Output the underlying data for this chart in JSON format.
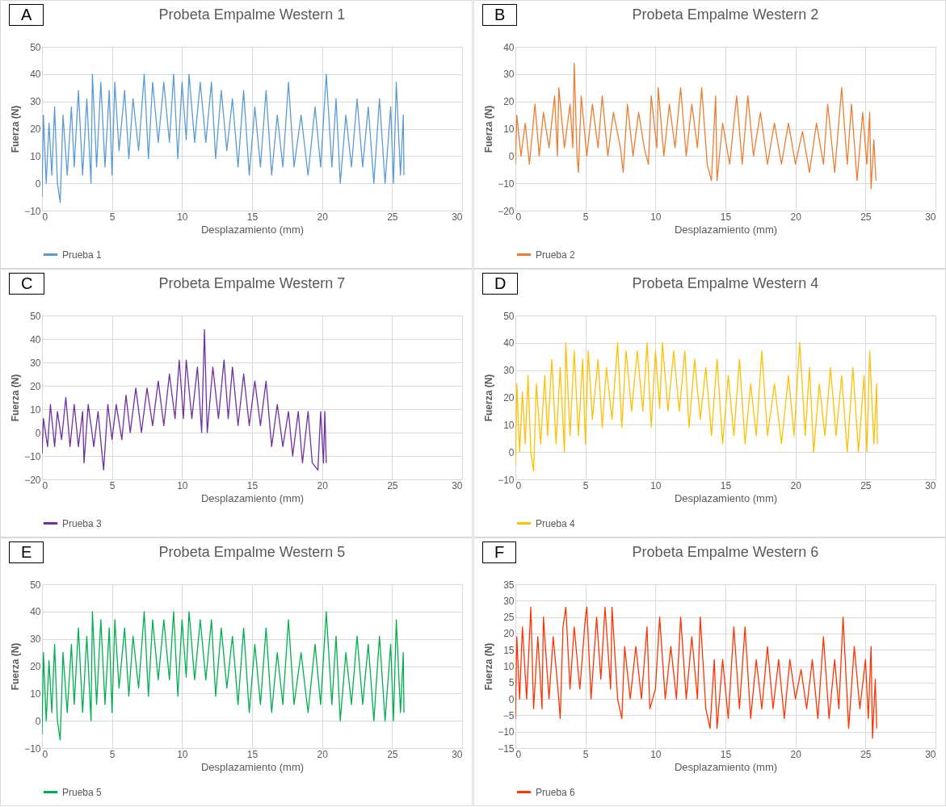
{
  "chart_data": [
    {
      "type": "line",
      "title": "Probeta Empalme Western 1",
      "xlabel": "Desplazamiento (mm)",
      "ylabel": "Fuerza (N)",
      "annotations": [
        "A"
      ],
      "xlim": [
        0,
        30
      ],
      "xticks": [
        0,
        5,
        10,
        15,
        20,
        25,
        30
      ],
      "ylim": [
        -10,
        50
      ],
      "yticks": [
        -10,
        0,
        10,
        20,
        30,
        40,
        50
      ],
      "grid": true,
      "legend": "bottom",
      "series": [
        {
          "name": "Prueba 1",
          "color": "#5b9bd5",
          "x": [
            0,
            0.1,
            0.3,
            0.5,
            0.7,
            0.9,
            1.1,
            1.3,
            1.5,
            1.8,
            2.1,
            2.3,
            2.6,
            2.9,
            3.2,
            3.5,
            3.6,
            3.9,
            4.2,
            4.5,
            4.8,
            5.0,
            5.2,
            5.5,
            5.9,
            6.2,
            6.5,
            6.9,
            7.3,
            7.6,
            7.9,
            8.3,
            8.7,
            9.1,
            9.4,
            9.7,
            10.0,
            10.3,
            10.5,
            10.9,
            11.3,
            11.7,
            12.1,
            12.4,
            12.8,
            13.2,
            13.6,
            14.0,
            14.4,
            14.8,
            15.2,
            15.6,
            16.0,
            16.4,
            16.8,
            17.2,
            17.6,
            18.0,
            18.5,
            19.0,
            19.5,
            19.9,
            20.3,
            20.7,
            21.0,
            21.3,
            21.7,
            22.1,
            22.5,
            22.9,
            23.3,
            23.7,
            24.1,
            24.5,
            24.9,
            25.1,
            25.3,
            25.6,
            25.8,
            25.85
          ],
          "values": [
            -5,
            25,
            0,
            22,
            3,
            28,
            0,
            -7,
            25,
            3,
            28,
            6,
            34,
            3,
            31,
            0,
            40,
            6,
            37,
            6,
            34,
            3,
            37,
            12,
            34,
            9,
            31,
            12,
            40,
            9,
            37,
            15,
            37,
            15,
            40,
            9,
            37,
            16,
            40,
            15,
            37,
            15,
            37,
            9,
            34,
            12,
            31,
            6,
            34,
            3,
            28,
            6,
            34,
            3,
            25,
            6,
            37,
            6,
            25,
            3,
            28,
            6,
            40,
            6,
            31,
            0,
            25,
            6,
            31,
            6,
            28,
            0,
            31,
            0,
            28,
            0,
            37,
            3,
            25,
            3
          ]
        }
      ]
    },
    {
      "type": "line",
      "title": "Probeta Empalme Western 2",
      "xlabel": "Desplazamiento (mm)",
      "ylabel": "Fuerza (N)",
      "annotations": [
        "B"
      ],
      "xlim": [
        0,
        30
      ],
      "xticks": [
        0,
        5,
        10,
        15,
        20,
        25,
        30
      ],
      "ylim": [
        -20,
        40
      ],
      "yticks": [
        -20,
        -10,
        0,
        10,
        20,
        30,
        40
      ],
      "grid": true,
      "legend": "bottom",
      "series": [
        {
          "name": "Prueba 2",
          "color": "#ed7d31",
          "x": [
            0,
            0.1,
            0.4,
            0.7,
            1.0,
            1.4,
            1.7,
            2.0,
            2.4,
            2.8,
            3.0,
            3.1,
            3.5,
            3.9,
            4.1,
            4.2,
            4.4,
            4.5,
            4.7,
            5.1,
            5.5,
            5.9,
            6.2,
            6.6,
            7.0,
            7.5,
            7.7,
            8.0,
            8.4,
            8.8,
            9.2,
            9.5,
            9.7,
            10.1,
            10.2,
            10.6,
            11.0,
            11.4,
            11.8,
            12.2,
            12.6,
            13.0,
            13.3,
            13.7,
            14.0,
            14.3,
            14.4,
            14.8,
            15.3,
            15.8,
            16.2,
            16.6,
            17.0,
            17.5,
            18.0,
            18.5,
            19.0,
            19.5,
            20.0,
            20.5,
            21.0,
            21.5,
            22.0,
            22.3,
            22.8,
            23.3,
            23.7,
            24.0,
            24.4,
            24.8,
            25.1,
            25.3,
            25.4,
            25.6,
            25.75
          ],
          "values": [
            -3,
            15,
            0,
            12,
            -3,
            19,
            0,
            16,
            3,
            22,
            0,
            25,
            3,
            19,
            3,
            34,
            0,
            -6,
            22,
            0,
            19,
            3,
            22,
            0,
            16,
            3,
            -6,
            19,
            0,
            16,
            3,
            -3,
            22,
            3,
            25,
            0,
            19,
            3,
            25,
            0,
            19,
            3,
            25,
            -3,
            -9,
            22,
            -9,
            12,
            -3,
            22,
            -3,
            22,
            0,
            16,
            -3,
            12,
            -3,
            12,
            -3,
            9,
            -6,
            12,
            -3,
            19,
            -6,
            25,
            -3,
            19,
            -9,
            16,
            -3,
            16,
            -12,
            6,
            -9
          ]
        }
      ]
    },
    {
      "type": "line",
      "title": "Probeta Empalme Western 7",
      "xlabel": "Desplazamiento (mm)",
      "ylabel": "Fuerza (N)",
      "annotations": [
        "C"
      ],
      "xlim": [
        0,
        30
      ],
      "xticks": [
        0,
        5,
        10,
        15,
        20,
        25,
        30
      ],
      "ylim": [
        -20,
        50
      ],
      "yticks": [
        -20,
        -10,
        0,
        10,
        20,
        30,
        40,
        50
      ],
      "grid": true,
      "legend": "bottom",
      "series": [
        {
          "name": "Prueba 3",
          "color": "#7030a0",
          "x": [
            0,
            0.1,
            0.4,
            0.6,
            0.9,
            1.1,
            1.4,
            1.7,
            2.0,
            2.3,
            2.6,
            2.9,
            3.0,
            3.3,
            3.7,
            4.0,
            4.3,
            4.4,
            4.7,
            5.0,
            5.3,
            5.7,
            6.0,
            6.3,
            6.7,
            7.1,
            7.5,
            7.9,
            8.3,
            8.7,
            9.1,
            9.5,
            9.8,
            10.1,
            10.3,
            10.7,
            11.1,
            11.4,
            11.6,
            11.8,
            12.2,
            12.6,
            13.0,
            13.3,
            13.6,
            14.0,
            14.4,
            14.8,
            15.2,
            15.6,
            16.0,
            16.4,
            16.8,
            17.2,
            17.6,
            17.9,
            18.3,
            18.6,
            19.0,
            19.3,
            19.7,
            19.9,
            20.1,
            20.2,
            20.3
          ],
          "values": [
            -9,
            6,
            -6,
            12,
            -6,
            9,
            -3,
            15,
            -6,
            12,
            -6,
            9,
            -13,
            12,
            -6,
            9,
            -10,
            -16,
            12,
            -3,
            12,
            -3,
            16,
            0,
            19,
            0,
            19,
            3,
            22,
            3,
            25,
            6,
            31,
            6,
            31,
            6,
            28,
            0,
            44,
            0,
            28,
            6,
            31,
            6,
            28,
            3,
            25,
            3,
            22,
            3,
            22,
            -6,
            12,
            -6,
            9,
            -10,
            9,
            -13,
            9,
            -13,
            -16,
            9,
            -13,
            9,
            -13
          ]
        }
      ]
    },
    {
      "type": "line",
      "title": "Probeta Empalme Western 4",
      "xlabel": "Desplazamiento (mm)",
      "ylabel": "Fuerza (N)",
      "annotations": [
        "D"
      ],
      "xlim": [
        0,
        30
      ],
      "xticks": [
        0,
        5,
        10,
        15,
        20,
        25,
        30
      ],
      "ylim": [
        -10,
        50
      ],
      "yticks": [
        -10,
        0,
        10,
        20,
        30,
        40,
        50
      ],
      "grid": true,
      "legend": "bottom",
      "series": [
        {
          "name": "Prueba 4",
          "color": "#ffc000",
          "x": [
            0,
            0.1,
            0.3,
            0.5,
            0.7,
            0.9,
            1.1,
            1.3,
            1.5,
            1.8,
            2.1,
            2.3,
            2.6,
            2.9,
            3.2,
            3.5,
            3.6,
            3.9,
            4.2,
            4.5,
            4.8,
            5.0,
            5.2,
            5.5,
            5.9,
            6.2,
            6.5,
            6.9,
            7.3,
            7.6,
            7.9,
            8.3,
            8.7,
            9.1,
            9.4,
            9.7,
            10.0,
            10.3,
            10.5,
            10.9,
            11.3,
            11.7,
            12.1,
            12.4,
            12.8,
            13.2,
            13.6,
            14.0,
            14.4,
            14.8,
            15.2,
            15.6,
            16.0,
            16.4,
            16.8,
            17.2,
            17.6,
            18.0,
            18.5,
            19.0,
            19.5,
            19.9,
            20.3,
            20.7,
            21.0,
            21.3,
            21.7,
            22.1,
            22.5,
            22.9,
            23.3,
            23.7,
            24.1,
            24.5,
            24.9,
            25.1,
            25.3,
            25.6,
            25.8,
            25.85
          ],
          "values": [
            -5,
            25,
            0,
            22,
            3,
            28,
            0,
            -7,
            25,
            3,
            28,
            6,
            34,
            3,
            31,
            0,
            40,
            6,
            37,
            6,
            34,
            3,
            37,
            12,
            34,
            9,
            31,
            12,
            40,
            9,
            37,
            15,
            37,
            15,
            40,
            9,
            37,
            16,
            40,
            15,
            37,
            15,
            37,
            9,
            34,
            12,
            31,
            6,
            34,
            3,
            28,
            6,
            34,
            3,
            25,
            6,
            37,
            6,
            25,
            3,
            28,
            6,
            40,
            6,
            31,
            0,
            25,
            6,
            31,
            6,
            28,
            0,
            31,
            0,
            28,
            0,
            37,
            3,
            25,
            3
          ]
        }
      ]
    },
    {
      "type": "line",
      "title": "Probeta Empalme Western 5",
      "xlabel": "Desplazamiento (mm)",
      "ylabel": "Fuerza (N)",
      "annotations": [
        "E"
      ],
      "xlim": [
        0,
        30
      ],
      "xticks": [
        0,
        5,
        10,
        15,
        20,
        25,
        30
      ],
      "ylim": [
        -10,
        50
      ],
      "yticks": [
        -10,
        0,
        10,
        20,
        30,
        40,
        50
      ],
      "grid": true,
      "legend": "bottom",
      "series": [
        {
          "name": "Prueba 5",
          "color": "#00b050",
          "x": [
            0,
            0.1,
            0.3,
            0.5,
            0.7,
            0.9,
            1.1,
            1.3,
            1.5,
            1.8,
            2.1,
            2.3,
            2.6,
            2.9,
            3.2,
            3.5,
            3.6,
            3.9,
            4.2,
            4.5,
            4.8,
            5.0,
            5.2,
            5.5,
            5.9,
            6.2,
            6.5,
            6.9,
            7.3,
            7.6,
            7.9,
            8.3,
            8.7,
            9.1,
            9.4,
            9.7,
            10.0,
            10.3,
            10.5,
            10.9,
            11.3,
            11.7,
            12.1,
            12.4,
            12.8,
            13.2,
            13.6,
            14.0,
            14.4,
            14.8,
            15.2,
            15.6,
            16.0,
            16.4,
            16.8,
            17.2,
            17.6,
            18.0,
            18.5,
            19.0,
            19.5,
            19.9,
            20.3,
            20.7,
            21.0,
            21.3,
            21.7,
            22.1,
            22.5,
            22.9,
            23.3,
            23.7,
            24.1,
            24.5,
            24.9,
            25.1,
            25.3,
            25.6,
            25.8,
            25.85
          ],
          "values": [
            -5,
            25,
            0,
            22,
            3,
            28,
            0,
            -7,
            25,
            3,
            28,
            6,
            34,
            3,
            31,
            0,
            40,
            6,
            37,
            6,
            34,
            3,
            37,
            12,
            34,
            9,
            31,
            12,
            40,
            9,
            37,
            15,
            37,
            15,
            40,
            9,
            37,
            16,
            40,
            15,
            37,
            15,
            37,
            9,
            34,
            12,
            31,
            6,
            34,
            3,
            28,
            6,
            34,
            3,
            25,
            6,
            37,
            6,
            25,
            3,
            28,
            6,
            40,
            6,
            31,
            0,
            25,
            6,
            31,
            6,
            28,
            0,
            31,
            0,
            28,
            0,
            37,
            3,
            25,
            3
          ]
        }
      ]
    },
    {
      "type": "line",
      "title": "Probeta Empalme Western 6",
      "xlabel": "Desplazamiento (mm)",
      "ylabel": "Fuerza (N)",
      "annotations": [
        "F"
      ],
      "xlim": [
        0,
        30
      ],
      "xticks": [
        0,
        5,
        10,
        15,
        20,
        25,
        30
      ],
      "ylim": [
        -15,
        35
      ],
      "yticks": [
        -15,
        -10,
        -5,
        0,
        5,
        10,
        15,
        20,
        25,
        30,
        35
      ],
      "grid": true,
      "legend": "bottom",
      "series": [
        {
          "name": "Prueba 6",
          "color": "#ff3300",
          "x": [
            0,
            0.1,
            0.3,
            0.5,
            0.8,
            1.1,
            1.3,
            1.6,
            1.9,
            2.0,
            2.4,
            2.7,
            3.1,
            3.2,
            3.4,
            3.6,
            3.9,
            4.2,
            4.6,
            5.0,
            5.1,
            5.4,
            5.8,
            6.1,
            6.4,
            6.8,
            6.9,
            7.3,
            7.6,
            7.8,
            8.2,
            8.6,
            9.0,
            9.4,
            9.6,
            10.0,
            10.3,
            10.7,
            11.1,
            11.5,
            11.8,
            12.2,
            12.6,
            13.0,
            13.2,
            13.6,
            13.9,
            14.2,
            14.4,
            14.8,
            15.2,
            15.6,
            16.0,
            16.4,
            16.8,
            17.2,
            17.6,
            18.0,
            18.4,
            18.8,
            19.2,
            19.6,
            20.0,
            20.4,
            20.8,
            21.2,
            21.6,
            22.0,
            22.4,
            22.8,
            23.1,
            23.4,
            23.8,
            24.2,
            24.6,
            25.0,
            25.2,
            25.4,
            25.5,
            25.7,
            25.8
          ],
          "values": [
            -6,
            19,
            0,
            22,
            0,
            28,
            -3,
            19,
            -3,
            25,
            0,
            19,
            0,
            -6,
            22,
            28,
            3,
            22,
            3,
            25,
            28,
            0,
            25,
            6,
            28,
            3,
            28,
            0,
            -6,
            16,
            0,
            16,
            0,
            22,
            -3,
            3,
            25,
            0,
            16,
            0,
            25,
            0,
            19,
            0,
            25,
            -3,
            -9,
            12,
            -9,
            12,
            -6,
            22,
            -3,
            22,
            -6,
            12,
            -3,
            16,
            -3,
            12,
            -6,
            12,
            0,
            9,
            -3,
            12,
            -6,
            19,
            -6,
            12,
            -3,
            25,
            -9,
            16,
            -3,
            12,
            -6,
            16,
            -12,
            6,
            -9
          ]
        }
      ]
    }
  ]
}
